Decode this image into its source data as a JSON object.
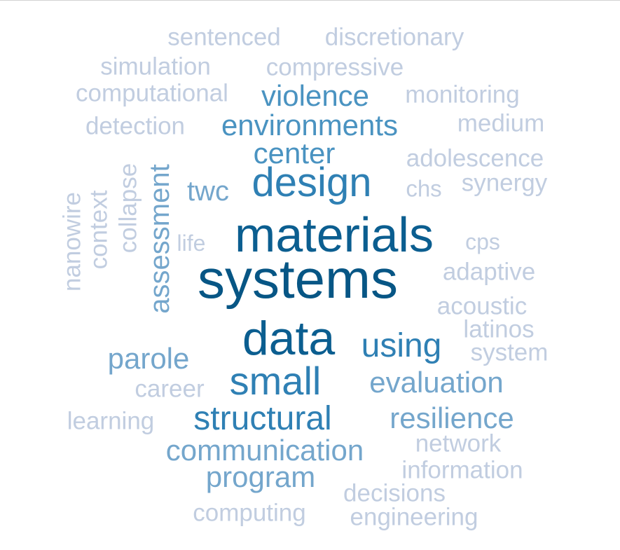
{
  "words": {
    "systems": "systems",
    "materials": "materials",
    "data": "data",
    "design": "design",
    "small": "small",
    "using": "using",
    "structural": "structural",
    "violence": "violence",
    "environments": "environments",
    "center": "center",
    "communication": "communication",
    "program": "program",
    "evaluation": "evaluation",
    "resilience": "resilience",
    "parole": "parole",
    "twc": "twc",
    "assessment": "assessment",
    "sentenced": "sentenced",
    "discretionary": "discretionary",
    "simulation": "simulation",
    "compressive": "compressive",
    "computational": "computational",
    "monitoring": "monitoring",
    "detection": "detection",
    "medium": "medium",
    "adolescence": "adolescence",
    "synergy": "synergy",
    "chs": "chs",
    "life": "life",
    "cps": "cps",
    "adaptive": "adaptive",
    "acoustic": "acoustic",
    "latinos": "latinos",
    "system": "system",
    "career": "career",
    "learning": "learning",
    "network": "network",
    "information": "information",
    "decisions": "decisions",
    "computing": "computing",
    "engineering": "engineering",
    "collapse": "collapse",
    "context": "context",
    "nanowire": "nanowire"
  },
  "palette": {
    "lightest": "#c1cde0",
    "light": "#74a6cc",
    "medium": "#4a93c1",
    "strong": "#2f80b4",
    "dark": "#0b5e90",
    "darkest": "#075685"
  }
}
